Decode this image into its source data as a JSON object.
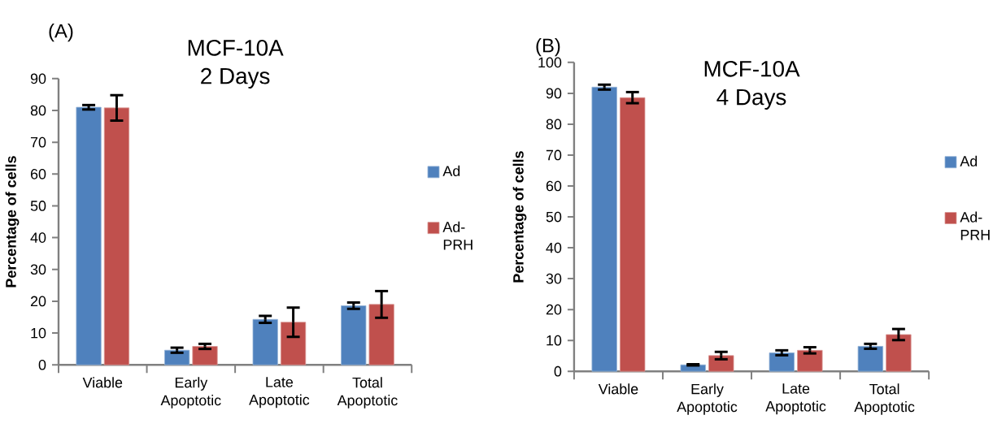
{
  "chart_data": [
    {
      "type": "bar",
      "title": "MCF-10A",
      "subtitle": "2 Days",
      "ylabel": "Percentage of cells",
      "annotations": [
        "(A)"
      ],
      "categories": [
        "Viable",
        "Early Apoptotic",
        "Late Apoptotic",
        "Total Apoptotic"
      ],
      "series": [
        {
          "name": "Ad",
          "color": "#4f81bd",
          "values": [
            81.0,
            4.6,
            14.3,
            18.6
          ],
          "errors": [
            0.7,
            0.8,
            1.1,
            1.0
          ]
        },
        {
          "name": "Ad-PRH",
          "color": "#c0504d",
          "values": [
            80.8,
            5.8,
            13.4,
            19.0
          ],
          "errors": [
            4.0,
            0.8,
            4.6,
            4.2
          ]
        }
      ],
      "ylim": [
        0,
        90
      ],
      "yticks": [
        0,
        10,
        20,
        30,
        40,
        50,
        60,
        70,
        80,
        90
      ],
      "legend": "right"
    },
    {
      "type": "bar",
      "title": "MCF-10A",
      "subtitle": "4 Days",
      "ylabel": "Percentage of cells",
      "annotations": [
        "(B)"
      ],
      "categories": [
        "Viable",
        "Early Apoptotic",
        "Late Apoptotic",
        "Total Apoptotic"
      ],
      "series": [
        {
          "name": "Ad",
          "color": "#4f81bd",
          "values": [
            92.0,
            2.1,
            6.0,
            8.1
          ],
          "errors": [
            0.8,
            0.2,
            0.8,
            0.8
          ]
        },
        {
          "name": "Ad-PRH",
          "color": "#c0504d",
          "values": [
            88.6,
            5.1,
            6.8,
            11.9
          ],
          "errors": [
            1.8,
            1.2,
            1.0,
            1.8
          ]
        }
      ],
      "ylim": [
        0,
        100
      ],
      "yticks": [
        0,
        10,
        20,
        30,
        40,
        50,
        60,
        70,
        80,
        90,
        100
      ],
      "legend": "right"
    }
  ]
}
